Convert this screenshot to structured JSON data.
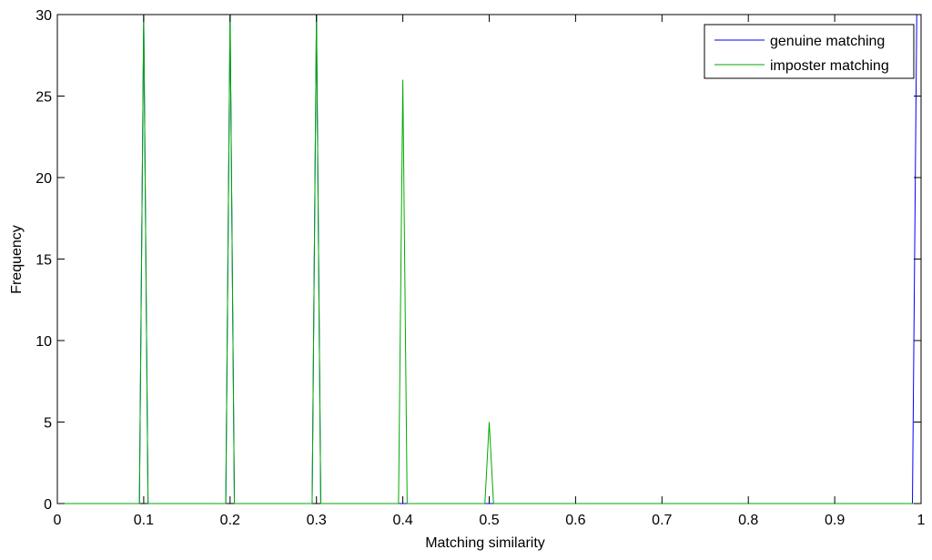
{
  "chart_data": {
    "type": "line",
    "title": "",
    "xlabel": "Matching similarity",
    "ylabel": "Frequency",
    "xlim": [
      0,
      1
    ],
    "ylim": [
      0,
      30
    ],
    "xticks": [
      0,
      0.1,
      0.2,
      0.3,
      0.4,
      0.5,
      0.6,
      0.7,
      0.8,
      0.9,
      1
    ],
    "xtick_labels": [
      "0",
      "0.1",
      "0.2",
      "0.3",
      "0.4",
      "0.5",
      "0.6",
      "0.7",
      "0.8",
      "0.9",
      "1"
    ],
    "yticks": [
      0,
      5,
      10,
      15,
      20,
      25,
      30
    ],
    "ytick_labels": [
      "0",
      "5",
      "10",
      "15",
      "20",
      "25",
      "30"
    ],
    "grid": false,
    "legend_position": "top-right",
    "series": [
      {
        "name": "genuine matching",
        "color": "#0000ff",
        "x": [
          0,
          0.095,
          0.1,
          0.105,
          0.195,
          0.2,
          0.205,
          0.295,
          0.3,
          0.305,
          0.395,
          0.4,
          0.405,
          0.495,
          0.5,
          0.505,
          0.99,
          0.995,
          1.0
        ],
        "y": [
          0,
          0,
          30,
          0,
          0,
          30,
          0,
          0,
          30,
          0,
          0,
          0,
          0,
          0,
          0,
          0,
          0,
          30,
          30
        ]
      },
      {
        "name": "imposter matching",
        "color": "#00aa00",
        "x": [
          0,
          0.095,
          0.1,
          0.105,
          0.195,
          0.2,
          0.205,
          0.295,
          0.3,
          0.305,
          0.395,
          0.4,
          0.405,
          0.495,
          0.5,
          0.505,
          1.0
        ],
        "y": [
          0,
          0,
          30,
          0,
          0,
          30,
          0,
          0,
          30,
          0,
          0,
          26,
          0,
          0,
          5,
          0,
          0
        ]
      }
    ]
  }
}
